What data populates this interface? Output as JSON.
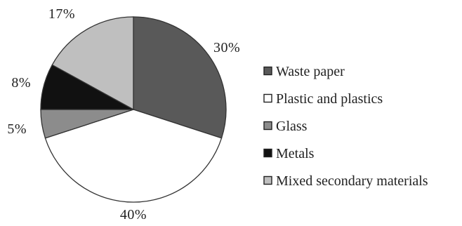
{
  "chart_data": {
    "type": "pie",
    "title": "",
    "unit": "%",
    "slices": [
      {
        "label": "Waste paper",
        "value": 30,
        "display": "30%",
        "color": "#595959"
      },
      {
        "label": "Plastic and plastics",
        "value": 40,
        "display": "40%",
        "color": "#ffffff"
      },
      {
        "label": "Glass",
        "value": 5,
        "display": "5%",
        "color": "#8c8c8c"
      },
      {
        "label": "Metals",
        "value": 8,
        "display": "8%",
        "color": "#111111"
      },
      {
        "label": "Mixed secondary materials",
        "value": 17,
        "display": "17%",
        "color": "#bfbfbf"
      }
    ],
    "start_angle_deg": 0,
    "direction": "clockwise",
    "legend_position": "right",
    "outline_color": "#333333"
  }
}
